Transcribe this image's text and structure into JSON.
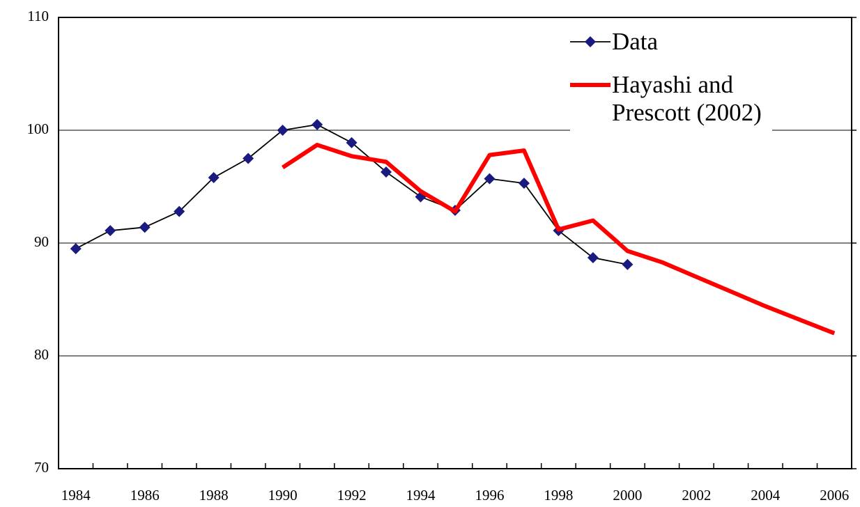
{
  "chart_data": {
    "type": "line",
    "categories": [
      "1984",
      null,
      "1986",
      null,
      "1988",
      null,
      "1990",
      null,
      "1992",
      null,
      "1994",
      null,
      "1996",
      null,
      "1998",
      null,
      "2000",
      null,
      "2002",
      null,
      "2004",
      null,
      "2006"
    ],
    "series": [
      {
        "name": "Data",
        "color": "#000000",
        "marker_color": "#1a1a80",
        "marker": "diamond",
        "values": [
          89.5,
          91.1,
          91.4,
          92.8,
          95.8,
          97.5,
          100.0,
          100.5,
          98.9,
          96.3,
          94.1,
          92.9,
          95.7,
          95.3,
          91.1,
          88.7,
          88.1,
          null,
          null,
          null,
          null,
          null,
          null
        ]
      },
      {
        "name": "Hayashi and Prescott (2002)",
        "color": "#ff0000",
        "values": [
          null,
          null,
          null,
          null,
          null,
          null,
          96.7,
          98.7,
          97.7,
          97.2,
          94.6,
          92.8,
          97.8,
          98.2,
          91.2,
          92.0,
          89.3,
          88.3,
          87.0,
          85.7,
          84.4,
          83.2,
          82.0
        ]
      }
    ],
    "ylim": [
      70,
      110
    ],
    "yticks": [
      70,
      80,
      90,
      100,
      110
    ],
    "grid": true,
    "legend": "upper right"
  }
}
